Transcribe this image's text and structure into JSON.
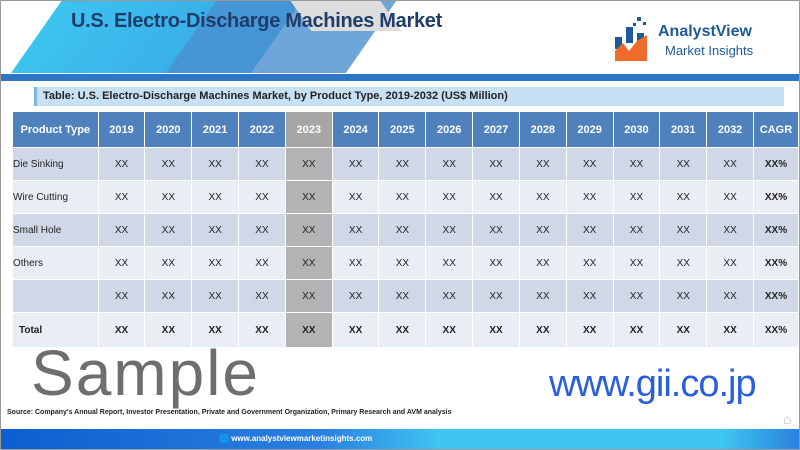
{
  "header": {
    "title": "U.S. Electro-Discharge Machines Market"
  },
  "logo": {
    "name": "AnalystView",
    "tagline": "Market Insights"
  },
  "table": {
    "caption": "Table: U.S. Electro-Discharge Machines Market, by Product Type, 2019-2032 (US$ Million)",
    "columns": [
      "Product Type",
      "2019",
      "2020",
      "2021",
      "2022",
      "2023",
      "2024",
      "2025",
      "2026",
      "2027",
      "2028",
      "2029",
      "2030",
      "2031",
      "2032",
      "CAGR"
    ],
    "highlight_column": "2023",
    "rows": [
      {
        "label": "Die Sinking",
        "values": [
          "XX",
          "XX",
          "XX",
          "XX",
          "XX",
          "XX",
          "XX",
          "XX",
          "XX",
          "XX",
          "XX",
          "XX",
          "XX",
          "XX",
          "XX%"
        ]
      },
      {
        "label": "Wire Cutting",
        "values": [
          "XX",
          "XX",
          "XX",
          "XX",
          "XX",
          "XX",
          "XX",
          "XX",
          "XX",
          "XX",
          "XX",
          "XX",
          "XX",
          "XX",
          "XX%"
        ]
      },
      {
        "label": "Small Hole",
        "values": [
          "XX",
          "XX",
          "XX",
          "XX",
          "XX",
          "XX",
          "XX",
          "XX",
          "XX",
          "XX",
          "XX",
          "XX",
          "XX",
          "XX",
          "XX%"
        ]
      },
      {
        "label": "Others",
        "values": [
          "XX",
          "XX",
          "XX",
          "XX",
          "XX",
          "XX",
          "XX",
          "XX",
          "XX",
          "XX",
          "XX",
          "XX",
          "XX",
          "XX",
          "XX%"
        ]
      },
      {
        "label": "",
        "values": [
          "XX",
          "XX",
          "XX",
          "XX",
          "XX",
          "XX",
          "XX",
          "XX",
          "XX",
          "XX",
          "XX",
          "XX",
          "XX",
          "XX",
          "XX%"
        ]
      },
      {
        "label": "Total",
        "values": [
          "XX",
          "XX",
          "XX",
          "XX",
          "XX",
          "XX",
          "XX",
          "XX",
          "XX",
          "XX",
          "XX",
          "XX",
          "XX",
          "XX",
          "XX%"
        ],
        "total": true
      }
    ]
  },
  "watermark": {
    "sample": "Sample",
    "site": "www.gii.co.jp"
  },
  "source": "Source: Company's Annual Report, Investor Presentation, Private and Government Organization, Primary Research and AVM analysis",
  "footer": {
    "url": "www.analystviewmarketinsights.com"
  },
  "colors": {
    "header_blue": "#4f81bd",
    "highlight_gray": "#b3b3b3",
    "accent": "#2e75c6"
  }
}
